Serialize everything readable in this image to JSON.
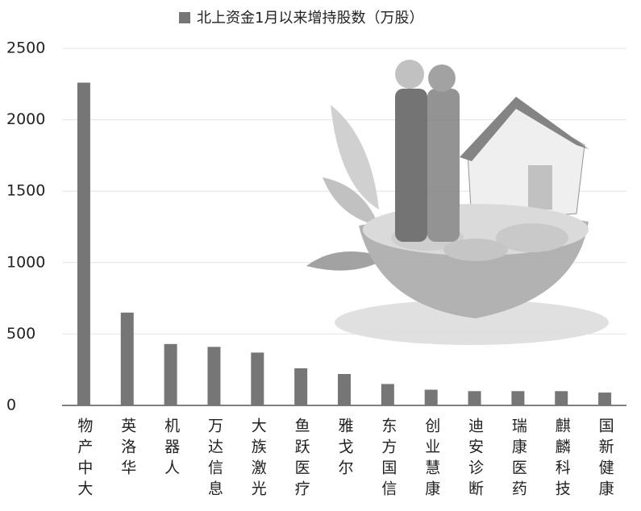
{
  "chart_data": {
    "type": "bar",
    "legend_label": "北上资金1月以来增持股数（万股）",
    "categories": [
      "物产中大",
      "英洛华",
      "机器人",
      "万达信息",
      "大族激光",
      "鱼跃医疗",
      "雅戈尔",
      "东方国信",
      "创业慧康",
      "迪安诊断",
      "瑞康医药",
      "麒麟科技",
      "国新健康"
    ],
    "values": [
      2260,
      650,
      430,
      410,
      370,
      260,
      220,
      150,
      110,
      100,
      100,
      100,
      90
    ],
    "color": "#767676",
    "ylim": [
      0,
      2500
    ],
    "yticks": [
      0,
      500,
      1000,
      1500,
      2000,
      2500
    ],
    "grid": true
  }
}
